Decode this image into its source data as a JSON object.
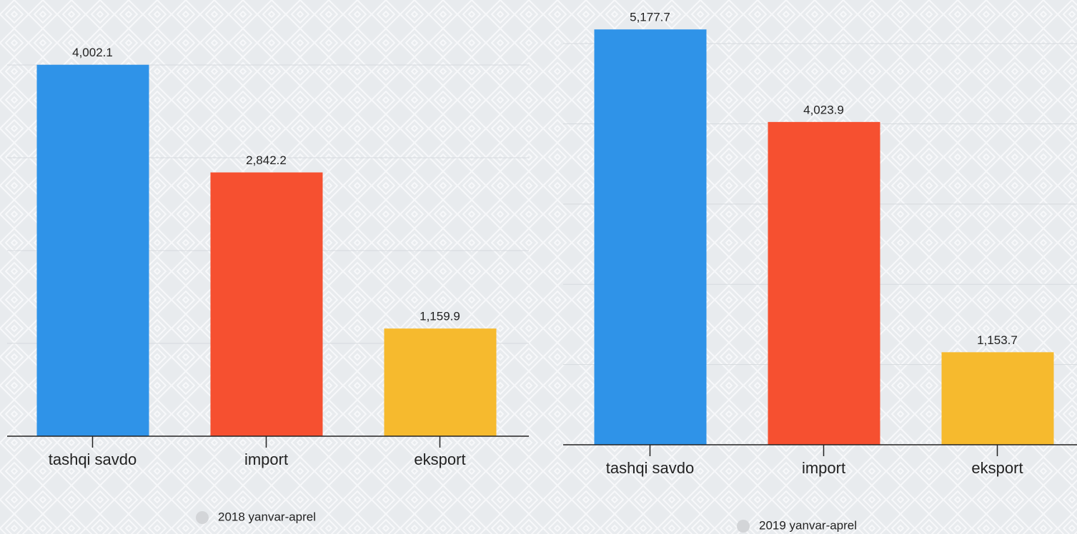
{
  "chart_data": [
    {
      "type": "bar",
      "categories": [
        "tashqi savdo",
        "import",
        "eksport"
      ],
      "series": [
        {
          "name": "2018 yanvar-aprel",
          "color": "#d3d5d8",
          "values": [
            4002.1,
            2842.2,
            1159.9
          ],
          "value_labels": [
            "4,002.1",
            "2,842.2",
            "1,159.9"
          ],
          "colors": [
            "#2f93e8",
            "#f65030",
            "#f6ba2e"
          ]
        }
      ],
      "ylim": [
        0,
        4500
      ],
      "yticks": [
        0,
        1000,
        2000,
        3000,
        4000
      ],
      "grid": true
    },
    {
      "type": "bar",
      "categories": [
        "tashqi savdo",
        "import",
        "eksport"
      ],
      "series": [
        {
          "name": "2019 yanvar-aprel",
          "color": "#d3d5d8",
          "values": [
            5177.7,
            4023.9,
            1153.7
          ],
          "value_labels": [
            "5,177.7",
            "4,023.9",
            "1,153.7"
          ],
          "colors": [
            "#2f93e8",
            "#f65030",
            "#f6ba2e"
          ]
        }
      ],
      "ylim": [
        0,
        5500
      ],
      "yticks": [
        0,
        1000,
        2000,
        3000,
        4000,
        5000
      ],
      "grid": true
    }
  ]
}
